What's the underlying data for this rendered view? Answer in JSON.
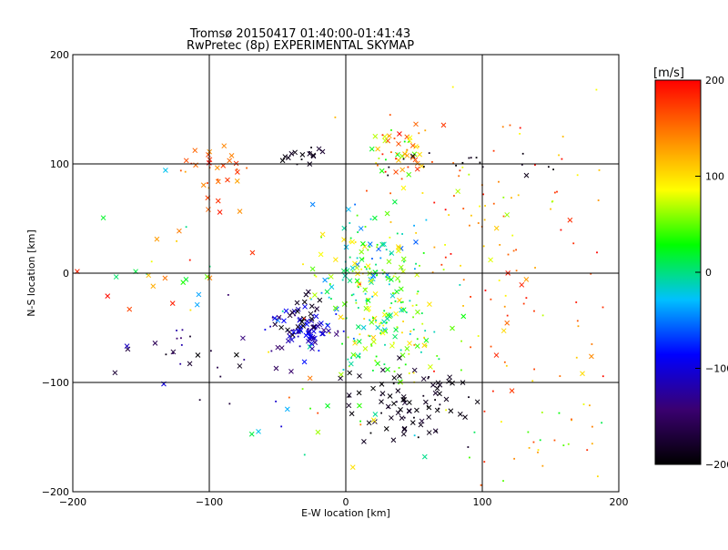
{
  "chart_data": {
    "type": "scatter",
    "title": "Tromsø 20150417 01:40:00-01:41:43",
    "subtitle": "RwPretec (8p) EXPERIMENTAL SKYMAP",
    "xlabel": "E-W location [km]",
    "ylabel": "N-S location [km]",
    "xlim": [
      -200,
      200
    ],
    "ylim": [
      -200,
      200
    ],
    "xticks": [
      -200,
      -100,
      0,
      100,
      200
    ],
    "yticks": [
      -200,
      -100,
      0,
      100,
      200
    ],
    "grid_lines": [
      -100,
      0,
      100
    ],
    "colorbar": {
      "label": "[m/s]",
      "range": [
        -200,
        200
      ],
      "ticks": [
        -200,
        -100,
        0,
        100,
        200
      ],
      "colors": [
        "#000000",
        "#3a0070",
        "#0000ff",
        "#00c0ff",
        "#00ff00",
        "#ffff00",
        "#ff8000",
        "#ff0000"
      ]
    },
    "clusters": [
      {
        "name": "northwest",
        "cx": -97,
        "cy": 95,
        "sx": 12,
        "sy": 14,
        "n": 30,
        "vmin": 120,
        "vmax": 200,
        "xfrac": 0.8
      },
      {
        "name": "north-dark",
        "cx": -35,
        "cy": 108,
        "sx": 12,
        "sy": 4,
        "n": 16,
        "vmin": -200,
        "vmax": -170,
        "xfrac": 0.7
      },
      {
        "name": "north-east",
        "cx": 40,
        "cy": 110,
        "sx": 12,
        "sy": 14,
        "n": 55,
        "vmin": 20,
        "vmax": 200,
        "xfrac": 0.6
      },
      {
        "name": "center",
        "cx": 18,
        "cy": 0,
        "sx": 20,
        "sy": 28,
        "n": 170,
        "vmin": -60,
        "vmax": 110,
        "xfrac": 0.45
      },
      {
        "name": "center-south",
        "cx": 25,
        "cy": -55,
        "sx": 25,
        "sy": 20,
        "n": 110,
        "vmin": -20,
        "vmax": 110,
        "xfrac": 0.4
      },
      {
        "name": "southwest-blue",
        "cx": -30,
        "cy": -52,
        "sx": 14,
        "sy": 10,
        "n": 75,
        "vmin": -150,
        "vmax": -80,
        "xfrac": 0.75
      },
      {
        "name": "west-dark",
        "cx": -32,
        "cy": -35,
        "sx": 8,
        "sy": 10,
        "n": 22,
        "vmin": -200,
        "vmax": -170,
        "xfrac": 0.8
      },
      {
        "name": "south-dark",
        "cx": 45,
        "cy": -120,
        "sx": 22,
        "sy": 18,
        "n": 85,
        "vmin": -200,
        "vmax": -175,
        "xfrac": 0.85
      },
      {
        "name": "far-west-arc",
        "cx": -115,
        "cy": -70,
        "sx": 35,
        "sy": 22,
        "n": 30,
        "vmin": -200,
        "vmax": -100,
        "xfrac": 0.3
      },
      {
        "name": "east-band",
        "cx": 110,
        "cy": 50,
        "sx": 45,
        "sy": 55,
        "n": 80,
        "vmin": 60,
        "vmax": 200,
        "xfrac": 0.15
      },
      {
        "name": "east-red",
        "cx": 120,
        "cy": -50,
        "sx": 40,
        "sy": 55,
        "n": 55,
        "vmin": 80,
        "vmax": 200,
        "xfrac": 0.1
      },
      {
        "name": "east-upper-black",
        "cx": 95,
        "cy": 100,
        "sx": 30,
        "sy": 6,
        "n": 18,
        "vmin": -200,
        "vmax": -180,
        "xfrac": 0.05
      },
      {
        "name": "west-misc",
        "cx": -125,
        "cy": 10,
        "sx": 30,
        "sy": 35,
        "n": 30,
        "vmin": -60,
        "vmax": 200,
        "xfrac": 0.7
      },
      {
        "name": "south-green",
        "cx": 150,
        "cy": -150,
        "sx": 25,
        "sy": 20,
        "n": 25,
        "vmin": 0,
        "vmax": 200,
        "xfrac": 0.1
      },
      {
        "name": "scatter-misc",
        "cx": -20,
        "cy": -140,
        "sx": 30,
        "sy": 25,
        "n": 20,
        "vmin": -120,
        "vmax": 180,
        "xfrac": 0.5
      }
    ]
  }
}
